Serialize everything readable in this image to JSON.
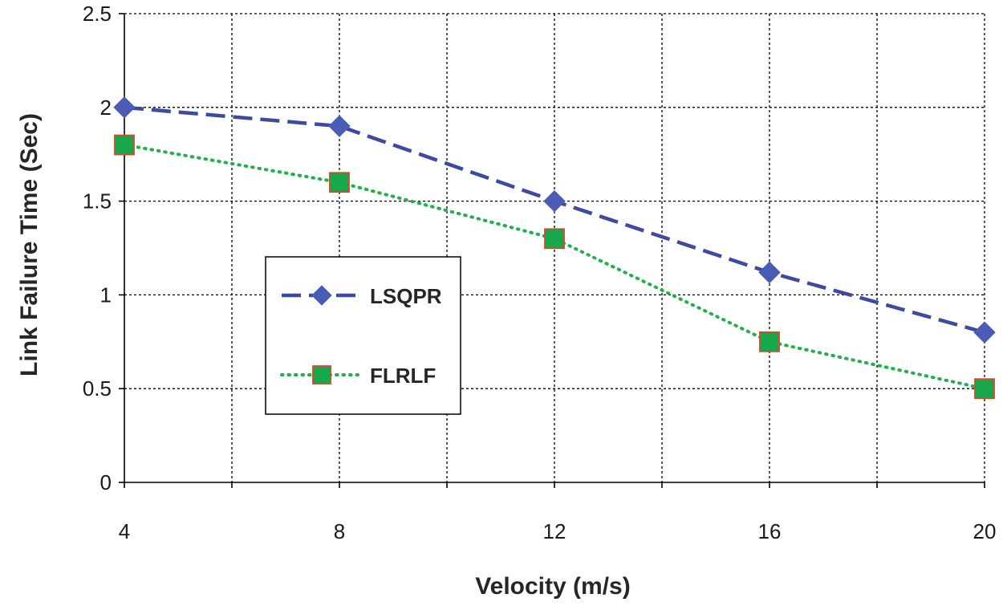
{
  "chart_data": {
    "type": "line",
    "title": "",
    "xlabel": "Velocity (m/s)",
    "ylabel": "Link Failure Time (Sec)",
    "x": [
      4,
      8,
      12,
      16,
      20
    ],
    "xticks": [
      "4",
      "8",
      "12",
      "16",
      "20"
    ],
    "yticks": [
      "0",
      "0.5",
      "1",
      "1.5",
      "2",
      "2.5"
    ],
    "xlim": [
      4,
      20
    ],
    "ylim": [
      0,
      2.5
    ],
    "grid": true,
    "legend_position": "center-left",
    "series": [
      {
        "name": "LSQPR",
        "values": [
          2.0,
          1.9,
          1.5,
          1.12,
          0.8
        ],
        "color": "#3d4aa0",
        "marker_color": "#4a5cb4",
        "line_style": "dashed",
        "marker": "diamond"
      },
      {
        "name": "FLRLF",
        "values": [
          1.8,
          1.6,
          1.3,
          0.75,
          0.5
        ],
        "color": "#22b04a",
        "marker_color": "#16a84a",
        "marker_edge": "#d04a2a",
        "line_style": "dotted",
        "marker": "square"
      }
    ]
  }
}
